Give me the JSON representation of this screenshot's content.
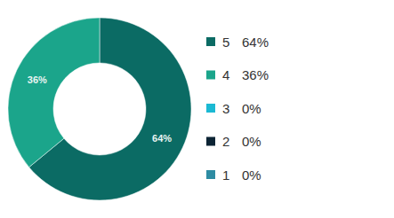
{
  "chart_data": {
    "type": "donut",
    "categories": [
      "5",
      "4",
      "3",
      "2",
      "1"
    ],
    "values": [
      64,
      36,
      0,
      0,
      0
    ],
    "value_labels": [
      "64%",
      "36%",
      "0%",
      "0%",
      "0%"
    ],
    "colors": [
      "#0b6b64",
      "#1ba58b",
      "#1bb9d3",
      "#0c2434",
      "#2e8ca3"
    ],
    "data_labels": true,
    "legend": "right"
  }
}
